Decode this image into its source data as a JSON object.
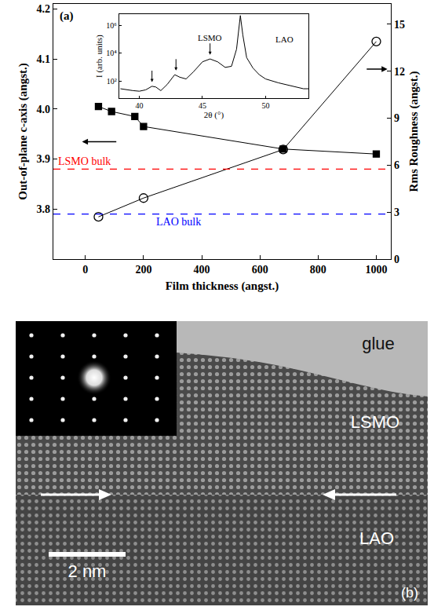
{
  "chart_data": [
    {
      "type": "line",
      "panel_label": "(a)",
      "x_label": "Film thickness (angst.)",
      "y_label": "Out-of-plane c-axis (angst.)",
      "y2_label": "Rms Roughness (angst.)",
      "xlim": [
        -110,
        1050
      ],
      "xticks": [
        0,
        200,
        400,
        600,
        800,
        1000
      ],
      "ylim": [
        3.7,
        4.21
      ],
      "yticks": [
        3.8,
        3.9,
        {
          "value": 4,
          "label": "4.0"
        },
        4.1,
        4.2
      ],
      "y2lim": [
        0,
        16.3
      ],
      "y2ticks": [
        0,
        3,
        6,
        9,
        12,
        15
      ],
      "series": [
        {
          "x": [
            45,
            90,
            170,
            200,
            680,
            1000
          ],
          "values": [
            4.005,
            3.995,
            3.985,
            3.965,
            3.92,
            3.91
          ],
          "color": "#000000",
          "marker": "square",
          "axis": "y"
        },
        {
          "x": [
            45,
            200,
            680,
            1000
          ],
          "values": [
            2.7,
            3.9,
            7.0,
            13.9
          ],
          "color": "#000000",
          "marker": "circle-open",
          "axis": "y2"
        }
      ],
      "reference_lines": [
        {
          "y": 3.88,
          "label": "LSMO bulk",
          "color": "#ff0000",
          "line_style": "dash"
        },
        {
          "y": 3.79,
          "label": "LAO bulk",
          "color": "#0000ff",
          "line_style": "dash"
        }
      ],
      "grid": false
    },
    {
      "type": "line",
      "log": "y",
      "x_label": "2θ (°)",
      "y_label": "I (arb. units)",
      "x": [
        38.5,
        39,
        39.5,
        40,
        40.5,
        41,
        41.3,
        41.7,
        42.2,
        42.8,
        43.2,
        43.7,
        44.3,
        45,
        45.6,
        46.2,
        46.8,
        47.3,
        47.7,
        48,
        48.2,
        48.5,
        49,
        49.5,
        50,
        51,
        52,
        53,
        53.4
      ],
      "values": [
        30,
        25,
        22,
        20,
        25,
        45,
        40,
        22,
        60,
        300,
        200,
        150,
        500,
        2500,
        4000,
        2500,
        1000,
        1200,
        20000,
        5000000,
        200000,
        5000,
        900,
        300,
        150,
        80,
        50,
        30,
        30
      ],
      "color": "#000000",
      "xlim": [
        38.4,
        53.4
      ],
      "xticks": [
        40,
        45,
        50
      ],
      "ylim": [
        6.2,
        6300000
      ],
      "yticks": [
        {
          "value": 100,
          "label": "10²"
        },
        {
          "value": 10000,
          "label": "10⁴"
        },
        {
          "value": 1000000,
          "label": "10⁶"
        }
      ],
      "annotations": [
        {
          "x": 41,
          "y": 90
        },
        {
          "x": 42.9,
          "y": 600
        },
        {
          "x": 45.6,
          "y": 8000,
          "text": "LSMO"
        },
        {
          "x": 51.5,
          "y": 100000,
          "text": "LAO"
        }
      ],
      "grid": false
    }
  ],
  "image_panel": {
    "panel_label": "(b)",
    "labels": {
      "top": "glue",
      "middle": "LSMO",
      "bottom": "LAO"
    },
    "scale_bar": "2 nm"
  }
}
